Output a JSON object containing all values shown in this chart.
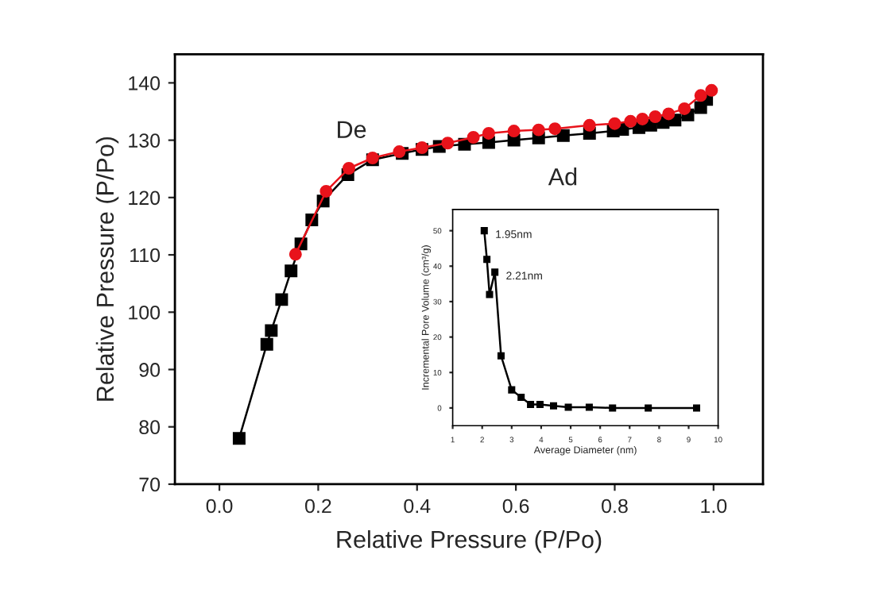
{
  "chart_data": [
    {
      "type": "line",
      "xlabel": "Relative Pressure (P/Po)",
      "ylabel": "Relative Pressure (P/Po)",
      "xlim": [
        -0.09,
        1.1
      ],
      "xticks": [
        {
          "value": 0,
          "label": "0.0"
        },
        0.2,
        0.4,
        0.6,
        0.8,
        {
          "value": 1,
          "label": "1.0"
        }
      ],
      "ylim": [
        70,
        145
      ],
      "yticks": [
        70,
        80,
        90,
        100,
        110,
        120,
        130,
        140
      ],
      "grid": false,
      "legend": false,
      "line_style": "solid",
      "annotations": [
        "De",
        "Ad"
      ],
      "series": [
        {
          "color": "#000000",
          "marker": "square",
          "x": [
            0.04,
            0.096,
            0.105,
            0.126,
            0.145,
            0.165,
            0.187,
            0.21,
            0.26,
            0.31,
            0.37,
            0.41,
            0.445,
            0.496,
            0.545,
            0.596,
            0.646,
            0.696,
            0.749,
            0.797,
            0.816,
            0.849,
            0.873,
            0.898,
            0.922,
            0.948,
            0.974,
            0.986
          ],
          "values": [
            78,
            94.4,
            96.8,
            102.2,
            107.2,
            111.9,
            116.1,
            119.4,
            124,
            126.6,
            127.7,
            128.4,
            128.9,
            129.3,
            129.6,
            130,
            130.4,
            130.8,
            131.2,
            131.6,
            131.9,
            132.2,
            132.6,
            133.1,
            133.5,
            134.4,
            135.7,
            137.1
          ]
        },
        {
          "color": "#e8131b",
          "marker": "circle",
          "x": [
            0.154,
            0.216,
            0.262,
            0.31,
            0.364,
            0.41,
            0.462,
            0.514,
            0.545,
            0.596,
            0.646,
            0.679,
            0.749,
            0.8,
            0.832,
            0.856,
            0.882,
            0.909,
            0.941,
            0.974,
            0.996
          ],
          "values": [
            110.1,
            121.1,
            125.1,
            126.9,
            128,
            128.7,
            129.5,
            130.5,
            131.2,
            131.6,
            131.8,
            132,
            132.6,
            132.9,
            133.3,
            133.7,
            134.1,
            134.6,
            135.5,
            137.8,
            138.7
          ]
        }
      ]
    },
    {
      "type": "line",
      "xlabel": "Average Diameter (nm)",
      "ylabel": "Incremental Pore Volume (cm³/g)",
      "xlim": [
        1,
        10
      ],
      "xticks": [
        1,
        2,
        3,
        4,
        5,
        6,
        7,
        8,
        9,
        10
      ],
      "ylim": [
        -5,
        56
      ],
      "yticks": [
        0,
        10,
        20,
        30,
        40,
        50
      ],
      "grid": false,
      "legend": false,
      "line_style": "solid",
      "annotations": [
        {
          "text": "1.95nm",
          "x": 2.07,
          "y": 50
        },
        {
          "text": "2.21nm",
          "x": 2.43,
          "y": 38.3
        }
      ],
      "series": [
        {
          "color": "#000000",
          "marker": "square",
          "x": [
            2.07,
            2.16,
            2.25,
            2.43,
            2.64,
            3.0,
            3.32,
            3.64,
            3.96,
            4.42,
            4.92,
            5.63,
            6.42,
            7.63,
            9.27
          ],
          "values": [
            50,
            41.9,
            32,
            38.3,
            14.7,
            5.1,
            3,
            1,
            1,
            0.6,
            0.2,
            0.2,
            0,
            0,
            0
          ]
        }
      ]
    }
  ]
}
